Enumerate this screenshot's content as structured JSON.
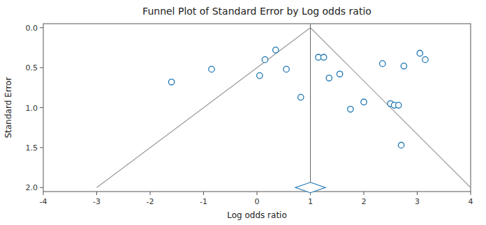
{
  "chart_data": {
    "type": "scatter",
    "title": "Funnel Plot of Standard Error by Log odds ratio",
    "x_label": "Log odds ratio",
    "y_label": "Standard Error",
    "x": [
      -1.6,
      -0.85,
      0.05,
      0.15,
      0.35,
      0.55,
      0.82,
      1.15,
      1.25,
      1.35,
      1.55,
      1.75,
      2.0,
      2.35,
      2.5,
      2.57,
      2.65,
      2.75,
      3.05,
      3.15,
      2.7
    ],
    "values": [
      0.68,
      0.52,
      0.6,
      0.4,
      0.28,
      0.52,
      0.87,
      0.37,
      0.37,
      0.63,
      0.58,
      1.02,
      0.93,
      0.45,
      0.95,
      0.97,
      0.97,
      0.48,
      0.32,
      0.4,
      1.47
    ],
    "xlim": [
      -4,
      4
    ],
    "ylim": [
      2.05,
      -0.05
    ],
    "xticks": [
      -4,
      -3,
      -2,
      -1,
      0,
      1,
      2,
      3,
      4
    ],
    "yticks": [
      {
        "value": 0.0,
        "label": "0.0"
      },
      0.5,
      {
        "value": 1.0,
        "label": "1.0"
      },
      1.5,
      {
        "value": 2.0,
        "label": "2.0"
      }
    ],
    "grid": false,
    "funnel": {
      "apex_x": 1.0,
      "apex_y": 0.0,
      "base_y": 2.0,
      "base_left_x": -3.0,
      "base_right_x": 4.0
    },
    "reference_x": 1.0,
    "summary_diamond": {
      "x": 1.0,
      "y": 2.0,
      "half_width": 0.28,
      "half_height": 0.065
    }
  }
}
